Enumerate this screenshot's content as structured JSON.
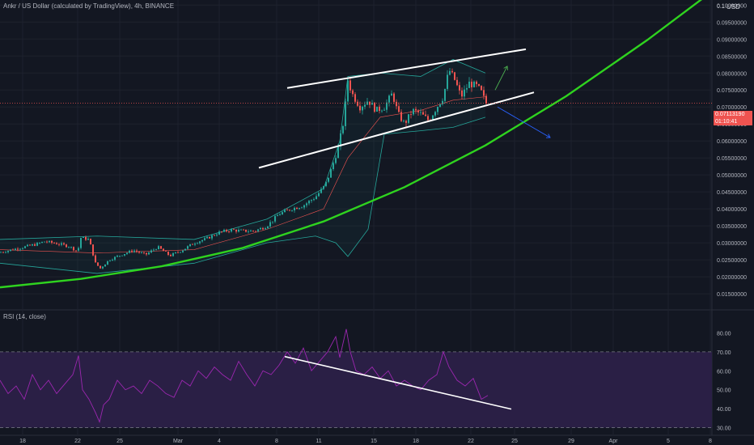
{
  "price_pane": {
    "title": "Ankr / US Dollar (calculated by TradingView), 4h, BINANCE",
    "currency": "USD",
    "y_ticks": [
      "0.1",
      "0.10000000",
      "0.09500000",
      "0.09000000",
      "0.08500000",
      "0.08000000",
      "0.07500000",
      "0.07000000",
      "0.06500000",
      "0.06000000",
      "0.05500000",
      "0.05000000",
      "0.04500000",
      "0.04000000",
      "0.03500000",
      "0.03000000",
      "0.02500000",
      "0.02000000",
      "0.01500000"
    ],
    "current_price": "0.07113190",
    "countdown": "01:10:41"
  },
  "rsi_pane": {
    "title": "RSI (14, close)",
    "y_ticks": [
      "80.00",
      "70.00",
      "60.00",
      "50.00",
      "40.00",
      "30.00"
    ]
  },
  "x_ticks": [
    "18",
    "22",
    "25",
    "Mar",
    "4",
    "8",
    "11",
    "15",
    "18",
    "22",
    "25",
    "29",
    "Apr",
    "5",
    "8"
  ],
  "colors": {
    "background": "#131722",
    "up": "#26a69a",
    "down": "#ef5350",
    "ma_curve": "#2fd31f",
    "rsi_line": "#9c27b0",
    "rsi_band": "#2a1f45",
    "trendline": "#ffffff",
    "arrow_up": "#4caf50",
    "arrow_down": "#2962ff"
  },
  "chart_data": [
    {
      "type": "candlestick",
      "title": "Ankr / US Dollar (calculated by TradingView), 4h, BINANCE",
      "x_labels": [
        "18",
        "22",
        "25",
        "Mar",
        "4",
        "8",
        "11",
        "15",
        "18",
        "22",
        "25",
        "29",
        "Apr",
        "5",
        "8"
      ],
      "ylim": [
        0.0105,
        0.1015
      ],
      "last_price": 0.0711319,
      "price_path": [
        [
          0,
          0.0272
        ],
        [
          15,
          0.028
        ],
        [
          30,
          0.0288
        ],
        [
          45,
          0.0296
        ],
        [
          55,
          0.0304
        ],
        [
          70,
          0.0298
        ],
        [
          85,
          0.029
        ],
        [
          96,
          0.0275
        ],
        [
          100,
          0.0315
        ],
        [
          110,
          0.031
        ],
        [
          118,
          0.024
        ],
        [
          124,
          0.0225
        ],
        [
          135,
          0.025
        ],
        [
          150,
          0.0265
        ],
        [
          165,
          0.0278
        ],
        [
          180,
          0.0265
        ],
        [
          195,
          0.0288
        ],
        [
          210,
          0.0262
        ],
        [
          225,
          0.0278
        ],
        [
          240,
          0.03
        ],
        [
          255,
          0.0312
        ],
        [
          270,
          0.033
        ],
        [
          285,
          0.0338
        ],
        [
          300,
          0.0335
        ],
        [
          315,
          0.0335
        ],
        [
          330,
          0.035
        ],
        [
          345,
          0.0385
        ],
        [
          360,
          0.04
        ],
        [
          375,
          0.041
        ],
        [
          390,
          0.0435
        ],
        [
          402,
          0.047
        ],
        [
          410,
          0.052
        ],
        [
          418,
          0.058
        ],
        [
          425,
          0.066
        ],
        [
          430,
          0.078
        ],
        [
          435,
          0.074
        ],
        [
          445,
          0.07
        ],
        [
          455,
          0.072
        ],
        [
          465,
          0.069
        ],
        [
          475,
          0.07
        ],
        [
          485,
          0.074
        ],
        [
          492,
          0.068
        ],
        [
          500,
          0.065
        ],
        [
          510,
          0.069
        ],
        [
          520,
          0.068
        ],
        [
          530,
          0.066
        ],
        [
          540,
          0.07
        ],
        [
          548,
          0.073
        ],
        [
          555,
          0.081
        ],
        [
          562,
          0.078
        ],
        [
          570,
          0.073
        ],
        [
          580,
          0.077
        ],
        [
          590,
          0.076
        ],
        [
          596,
          0.074
        ],
        [
          600,
          0.0711
        ]
      ],
      "bollinger_mid": [
        [
          0,
          0.028
        ],
        [
          120,
          0.027
        ],
        [
          240,
          0.028
        ],
        [
          330,
          0.034
        ],
        [
          400,
          0.04
        ],
        [
          430,
          0.055
        ],
        [
          470,
          0.067
        ],
        [
          520,
          0.069
        ],
        [
          560,
          0.072
        ],
        [
          600,
          0.073
        ]
      ],
      "bollinger_upper": [
        [
          0,
          0.031
        ],
        [
          120,
          0.032
        ],
        [
          240,
          0.031
        ],
        [
          330,
          0.037
        ],
        [
          400,
          0.046
        ],
        [
          420,
          0.06
        ],
        [
          430,
          0.079
        ],
        [
          470,
          0.08
        ],
        [
          520,
          0.079
        ],
        [
          560,
          0.084
        ],
        [
          600,
          0.08
        ]
      ],
      "bollinger_lower": [
        [
          0,
          0.024
        ],
        [
          120,
          0.021
        ],
        [
          240,
          0.024
        ],
        [
          330,
          0.03
        ],
        [
          390,
          0.032
        ],
        [
          415,
          0.03
        ],
        [
          430,
          0.026
        ],
        [
          455,
          0.034
        ],
        [
          475,
          0.062
        ],
        [
          520,
          0.063
        ],
        [
          560,
          0.064
        ],
        [
          600,
          0.067
        ]
      ],
      "moving_average": [
        [
          0,
          0.0169
        ],
        [
          100,
          0.0194
        ],
        [
          200,
          0.0231
        ],
        [
          300,
          0.0285
        ],
        [
          400,
          0.0363
        ],
        [
          500,
          0.0464
        ],
        [
          600,
          0.0587
        ],
        [
          700,
          0.0732
        ],
        [
          800,
          0.0897
        ],
        [
          880,
          0.104
        ]
      ],
      "trendlines": [
        {
          "from": [
            355,
            0.0756
          ],
          "to": [
            650,
            0.087
          ]
        },
        {
          "from": [
            320,
            0.0521
          ],
          "to": [
            660,
            0.0743
          ]
        }
      ],
      "projections": [
        {
          "direction": "up",
          "from": [
            612,
            0.075
          ],
          "to": [
            627,
            0.082
          ]
        },
        {
          "direction": "down",
          "from": [
            615,
            0.07
          ],
          "to": [
            680,
            0.061
          ]
        }
      ]
    },
    {
      "type": "line",
      "title": "RSI (14, close)",
      "ylim": [
        26.0,
        87.0
      ],
      "bands": [
        30,
        70
      ],
      "values": [
        [
          0,
          55
        ],
        [
          10,
          48
        ],
        [
          20,
          52
        ],
        [
          30,
          45
        ],
        [
          40,
          58
        ],
        [
          50,
          50
        ],
        [
          60,
          55
        ],
        [
          70,
          48
        ],
        [
          80,
          53
        ],
        [
          90,
          58
        ],
        [
          97,
          68
        ],
        [
          102,
          50
        ],
        [
          110,
          45
        ],
        [
          118,
          38
        ],
        [
          123,
          33
        ],
        [
          128,
          42
        ],
        [
          135,
          45
        ],
        [
          145,
          55
        ],
        [
          155,
          50
        ],
        [
          165,
          52
        ],
        [
          175,
          48
        ],
        [
          185,
          55
        ],
        [
          195,
          52
        ],
        [
          205,
          48
        ],
        [
          215,
          46
        ],
        [
          225,
          55
        ],
        [
          235,
          52
        ],
        [
          245,
          60
        ],
        [
          255,
          56
        ],
        [
          265,
          62
        ],
        [
          275,
          58
        ],
        [
          285,
          55
        ],
        [
          295,
          65
        ],
        [
          305,
          58
        ],
        [
          315,
          52
        ],
        [
          325,
          60
        ],
        [
          335,
          58
        ],
        [
          345,
          63
        ],
        [
          355,
          70
        ],
        [
          365,
          64
        ],
        [
          375,
          72
        ],
        [
          385,
          60
        ],
        [
          395,
          65
        ],
        [
          405,
          70
        ],
        [
          415,
          78
        ],
        [
          420,
          67
        ],
        [
          428,
          82
        ],
        [
          433,
          70
        ],
        [
          440,
          60
        ],
        [
          450,
          58
        ],
        [
          460,
          62
        ],
        [
          470,
          56
        ],
        [
          480,
          60
        ],
        [
          490,
          52
        ],
        [
          500,
          55
        ],
        [
          510,
          52
        ],
        [
          520,
          50
        ],
        [
          530,
          55
        ],
        [
          540,
          58
        ],
        [
          548,
          70
        ],
        [
          555,
          62
        ],
        [
          565,
          55
        ],
        [
          575,
          52
        ],
        [
          585,
          56
        ],
        [
          595,
          45
        ],
        [
          603,
          47
        ]
      ],
      "trendline": {
        "from": [
          352,
          67.5
        ],
        "to": [
          632,
          39.8
        ]
      }
    }
  ]
}
